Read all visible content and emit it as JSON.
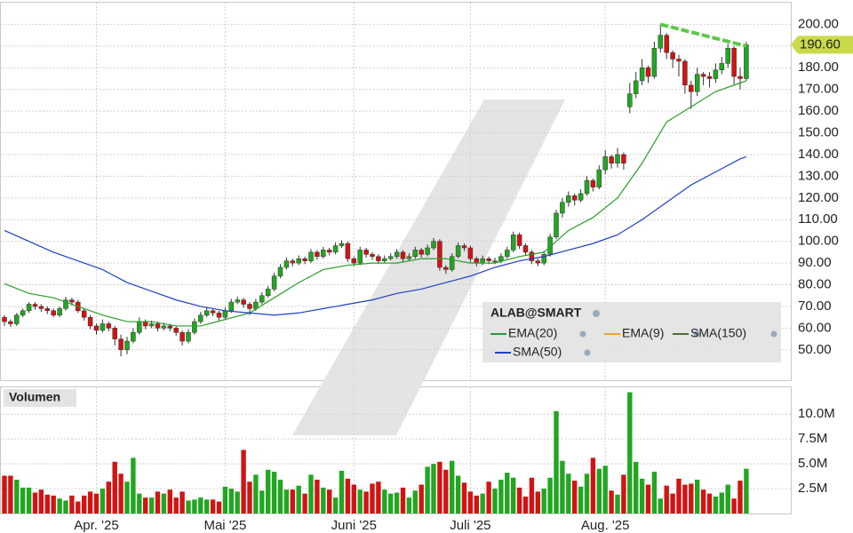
{
  "chart_data": {
    "type": "candlestick",
    "legend_title": "ALAB@SMART",
    "volume_title": "Volumen",
    "ylim": [
      36,
      210
    ],
    "yticks": [
      {
        "value": 50,
        "label": "50.00"
      },
      {
        "value": 60,
        "label": "60.00"
      },
      {
        "value": 70,
        "label": "70.00"
      },
      {
        "value": 80,
        "label": "80.00"
      },
      {
        "value": 90,
        "label": "90.00"
      },
      {
        "value": 100,
        "label": "100.00"
      },
      {
        "value": 110,
        "label": "110.00"
      },
      {
        "value": 120,
        "label": "120.00"
      },
      {
        "value": 130,
        "label": "130.00"
      },
      {
        "value": 140,
        "label": "140.00"
      },
      {
        "value": 150,
        "label": "150.00"
      },
      {
        "value": 160,
        "label": "160.00"
      },
      {
        "value": 170,
        "label": "170.00"
      },
      {
        "value": 180,
        "label": "180.00"
      },
      {
        "value": 190,
        "label": "190.00"
      },
      {
        "value": 200,
        "label": "200.00"
      }
    ],
    "xticks": [
      {
        "value": 15,
        "label": "Apr. '25"
      },
      {
        "value": 36,
        "label": "Mai '25"
      },
      {
        "value": 57,
        "label": "Juni '25"
      },
      {
        "value": 76,
        "label": "Juli '25"
      },
      {
        "value": 98,
        "label": "Aug. '25"
      }
    ],
    "grid": true,
    "up_color": "#22a622",
    "down_color": "#d01414",
    "last_price": {
      "value": 190.6,
      "label": "190.60",
      "color": "#c9d94a"
    },
    "trendline": {
      "x": [
        107,
        121
      ],
      "values": [
        200,
        190
      ],
      "color": "#5cc84a"
    },
    "open": [
      65,
      63,
      62,
      66,
      68,
      71,
      70,
      69,
      68,
      66,
      69,
      73,
      72,
      68,
      65,
      61,
      59,
      62,
      60,
      55,
      50,
      54,
      58,
      63,
      61,
      62,
      60,
      61,
      60,
      58,
      54,
      58,
      63,
      66,
      68,
      67,
      65,
      68,
      72,
      73,
      71,
      69,
      72,
      75,
      78,
      84,
      88,
      91,
      90,
      92,
      91,
      95,
      93,
      96,
      95,
      98,
      99,
      92,
      90,
      96,
      94,
      93,
      91,
      92,
      93,
      95,
      92,
      93,
      96,
      94,
      97,
      100,
      88,
      87,
      93,
      98,
      97,
      92,
      90,
      92,
      90.5,
      91,
      93,
      96,
      103,
      98,
      95,
      91,
      90,
      94,
      102,
      113,
      118,
      121,
      119,
      122,
      128,
      125,
      133,
      139,
      136,
      140,
      162,
      168,
      174,
      180,
      176,
      189,
      195,
      187,
      184,
      183,
      172,
      169,
      177,
      176,
      175,
      179,
      182,
      189,
      176,
      175
    ],
    "high": [
      66,
      64,
      67,
      69,
      72,
      72,
      71,
      70,
      69,
      70,
      74.5,
      74,
      73,
      69,
      66,
      62,
      64,
      63,
      61,
      57,
      56,
      60,
      65,
      64,
      63.5,
      63,
      62.5,
      62,
      61,
      59,
      59.5,
      64.5,
      67.5,
      69.5,
      69,
      68,
      69.5,
      73.5,
      74.5,
      74,
      72,
      73.5,
      76.5,
      79.5,
      85.5,
      89.5,
      92.5,
      92,
      93.5,
      93,
      96.5,
      96,
      97.5,
      97,
      99.5,
      100.5,
      100,
      93,
      97.5,
      97,
      95,
      94,
      93.5,
      94.5,
      96.5,
      96,
      94.5,
      97.5,
      97,
      98.5,
      101.5,
      101,
      89,
      94.5,
      99.5,
      99,
      98,
      93,
      93.5,
      93,
      92.5,
      94.5,
      97.5,
      104.5,
      104,
      99,
      96,
      92,
      95.5,
      103.5,
      114.5,
      120,
      123,
      122,
      124,
      130,
      129,
      135,
      142,
      140,
      143,
      141,
      173,
      178,
      184,
      181,
      192,
      200,
      196,
      188,
      186,
      184,
      174,
      180,
      178,
      178,
      182,
      185,
      191,
      190,
      180,
      192
    ],
    "low": [
      61,
      60.5,
      61,
      65,
      67,
      68.5,
      67.5,
      66.5,
      65,
      65,
      68,
      70.5,
      67,
      63.5,
      59.5,
      57,
      58,
      58.5,
      52,
      47,
      48,
      53,
      57,
      59.5,
      60,
      58.5,
      59,
      58.5,
      56.5,
      52,
      53,
      57,
      62,
      65,
      65.5,
      63.5,
      64,
      67,
      71,
      69.5,
      66,
      68,
      71,
      74,
      77,
      83,
      87,
      88.5,
      89,
      89.5,
      90,
      91.5,
      92,
      93.5,
      94,
      97,
      90.5,
      88.5,
      89,
      92.5,
      91.5,
      89.5,
      90,
      91,
      92,
      90.5,
      91,
      92,
      92.5,
      93,
      96,
      86.5,
      85,
      86,
      92,
      95.5,
      90.5,
      88.5,
      89,
      89.5,
      89.5,
      90,
      92,
      95,
      96.5,
      93.5,
      89.5,
      88.5,
      89,
      93,
      101,
      111,
      116,
      116.5,
      118,
      121,
      123,
      124,
      131,
      133.5,
      134,
      133,
      159,
      166,
      172,
      173,
      175,
      187,
      184,
      180,
      176,
      168,
      161,
      167,
      172,
      171,
      173,
      177,
      180,
      172,
      170,
      174
    ],
    "close": [
      63,
      62,
      66,
      68,
      71,
      70,
      69,
      68,
      66,
      69,
      73,
      72,
      68,
      65,
      61,
      59,
      62,
      60,
      55,
      50,
      54,
      58,
      63,
      61,
      62,
      60,
      61,
      60,
      58,
      54,
      58,
      63,
      66,
      68,
      67,
      65,
      68,
      72,
      73,
      71,
      69,
      72,
      75,
      78,
      84,
      88,
      91,
      90,
      92,
      91,
      95,
      93,
      96,
      95,
      98,
      99,
      92,
      90,
      96,
      94,
      93,
      91,
      92,
      93,
      95,
      92,
      93,
      96,
      94,
      97,
      100,
      88,
      87,
      93,
      98,
      97,
      92,
      90,
      92,
      91,
      91,
      93,
      96,
      103,
      98,
      95,
      91,
      90,
      94,
      102,
      113,
      118,
      121,
      119,
      122,
      128,
      125,
      133,
      139,
      136,
      140,
      136,
      168,
      174,
      180,
      176,
      189,
      195,
      187,
      184,
      183,
      172,
      169,
      177,
      176,
      175,
      179,
      182,
      189,
      176,
      175,
      190.6
    ],
    "volume": {
      "ylim": [
        0,
        12.7
      ],
      "yticks": [
        {
          "value": 2.5,
          "label": "2.5M"
        },
        {
          "value": 5,
          "label": "5.0M"
        },
        {
          "value": 7.5,
          "label": "7.5M"
        },
        {
          "value": 10,
          "label": "10.0M"
        }
      ],
      "values": [
        3.8,
        3.8,
        3.4,
        2.6,
        2.6,
        2.1,
        2.4,
        1.9,
        1.8,
        1.5,
        1.3,
        1.8,
        1.2,
        1.8,
        2.2,
        2.0,
        2.5,
        3.2,
        5.2,
        4.0,
        3.2,
        5.6,
        2.0,
        1.6,
        1.6,
        2.2,
        2.0,
        2.4,
        1.6,
        2.2,
        1.3,
        1.4,
        1.6,
        1.4,
        1.4,
        1.2,
        2.7,
        2.5,
        2.2,
        6.4,
        3.2,
        3.9,
        2.3,
        4.4,
        4.2,
        3.4,
        2.4,
        2.4,
        2.8,
        2.0,
        3.9,
        3.4,
        2.6,
        2.4,
        1.6,
        4.3,
        3.5,
        2.9,
        2.4,
        2.2,
        3.0,
        3.2,
        2.4,
        2.0,
        2.1,
        2.6,
        1.6,
        2.3,
        2.9,
        4.7,
        5.0,
        5.2,
        4.4,
        5.3,
        3.8,
        3.1,
        2.2,
        1.8,
        2.0,
        3.2,
        2.5,
        3.4,
        4.1,
        3.6,
        2.6,
        1.7,
        3.6,
        2.2,
        2.5,
        3.6,
        10.3,
        5.3,
        4.0,
        3.3,
        2.7,
        4.0,
        5.6,
        4.5,
        4.8,
        2.3,
        1.9,
        3.9,
        12.2,
        5.2,
        3.5,
        2.9,
        4.2,
        1.5,
        2.8,
        2.0,
        3.5,
        2.9,
        3.0,
        3.4,
        2.4,
        2.0,
        1.7,
        2.1,
        2.9,
        1.5,
        3.3,
        4.5
      ]
    },
    "series": [
      {
        "name": "EMA(20)",
        "color": "#2a9d2a",
        "x": [
          0,
          4,
          8,
          12,
          16,
          20,
          24,
          28,
          32,
          36,
          40,
          44,
          48,
          52,
          56,
          60,
          64,
          68,
          72,
          76,
          80,
          84,
          88,
          92,
          96,
          100,
          104,
          108,
          112,
          116,
          120,
          121
        ],
        "values": [
          80.5,
          76,
          74,
          70,
          66,
          63,
          63,
          61,
          61,
          64,
          67,
          74,
          81,
          87,
          89,
          90,
          90,
          92,
          92,
          90,
          90,
          93,
          95,
          105,
          111,
          120,
          136,
          155,
          162,
          169,
          173,
          174
        ]
      },
      {
        "name": "EMA(9)",
        "color": "#f0a030"
      },
      {
        "name": "SMA(150)",
        "color": "#556b2f"
      },
      {
        "name": "SMA(50)",
        "color": "#2040c0",
        "x": [
          0,
          4,
          8,
          12,
          16,
          20,
          24,
          28,
          32,
          36,
          40,
          44,
          48,
          52,
          56,
          60,
          64,
          68,
          72,
          76,
          80,
          84,
          88,
          92,
          96,
          100,
          104,
          108,
          112,
          116,
          120,
          121
        ],
        "values": [
          105,
          100,
          95,
          91,
          87,
          81,
          77,
          73,
          70,
          68,
          67,
          66,
          67,
          69,
          71,
          73,
          76,
          78,
          81,
          84,
          88,
          91,
          93,
          96,
          99,
          103,
          110,
          118,
          126,
          132,
          138,
          139
        ]
      }
    ]
  }
}
